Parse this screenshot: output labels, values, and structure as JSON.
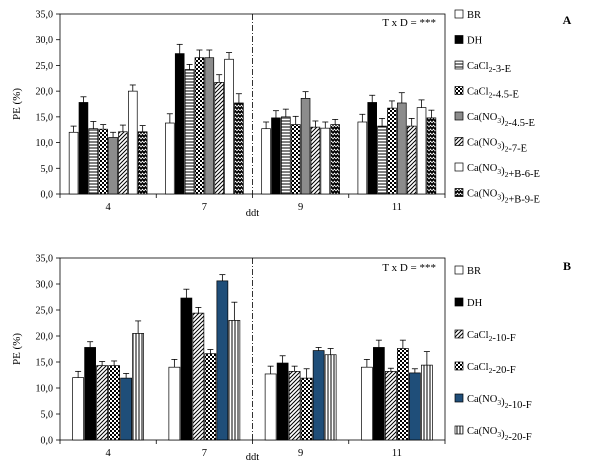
{
  "chart_data": [
    {
      "panel_label": "A",
      "type": "bar",
      "title": "",
      "annotation": "T x D = ***",
      "xlabel": "ddt",
      "ylabel": "PE (%)",
      "categories": [
        "4",
        "7",
        "9",
        "11"
      ],
      "ylim": [
        0,
        35
      ],
      "yticks": [
        "0,0",
        "5,0",
        "10,0",
        "15,0",
        "20,0",
        "25,0",
        "30,0",
        "35,0"
      ],
      "grid": false,
      "legend_position": "right",
      "series": [
        {
          "name": "BR",
          "pattern": "white",
          "values": [
            12.0,
            13.8,
            12.7,
            14.0
          ],
          "errors": [
            1.2,
            1.8,
            1.3,
            1.5
          ]
        },
        {
          "name": "DH",
          "pattern": "black",
          "values": [
            17.8,
            27.3,
            14.8,
            17.8
          ],
          "errors": [
            1.1,
            1.8,
            1.4,
            1.4
          ]
        },
        {
          "name": "CaCl2-3-E",
          "pattern": "hlines",
          "values": [
            12.7,
            24.2,
            15.0,
            13.2
          ],
          "errors": [
            1.4,
            1.0,
            1.5,
            1.5
          ]
        },
        {
          "name": "CaCl2-4.5-E",
          "pattern": "checker",
          "values": [
            12.6,
            26.5,
            13.5,
            16.7
          ],
          "errors": [
            0.9,
            1.5,
            1.6,
            1.4
          ]
        },
        {
          "name": "Ca(NO3)2-4.5-E",
          "pattern": "gray",
          "values": [
            11.0,
            26.5,
            18.6,
            17.7
          ],
          "errors": [
            1.0,
            1.5,
            1.3,
            2.0
          ]
        },
        {
          "name": "Ca(NO3)2-7-E",
          "pattern": "diag",
          "values": [
            12.1,
            21.7,
            13.0,
            13.2
          ],
          "errors": [
            1.3,
            1.5,
            1.2,
            1.5
          ]
        },
        {
          "name": "Ca(NO3)2+B-6-E",
          "pattern": "white",
          "values": [
            20.0,
            26.2,
            12.8,
            16.8
          ],
          "errors": [
            1.2,
            1.3,
            1.2,
            1.5
          ]
        },
        {
          "name": "Ca(NO3)2+B-9-E",
          "pattern": "zigzag",
          "values": [
            12.1,
            17.7,
            13.5,
            14.8
          ],
          "errors": [
            1.2,
            1.8,
            1.0,
            1.5
          ]
        }
      ],
      "legend_labels": [
        {
          "base": "BR",
          "sub": "",
          "rest": ""
        },
        {
          "base": "DH",
          "sub": "",
          "rest": ""
        },
        {
          "base": "CaCl",
          "sub": "2",
          "rest": "-3-E"
        },
        {
          "base": "CaCl",
          "sub": "2",
          "rest": "-4.5-E"
        },
        {
          "base": "Ca(NO",
          "sub": "3",
          "rest": ")",
          "sub2": "2",
          "rest2": "-4.5-E"
        },
        {
          "base": "Ca(NO",
          "sub": "3",
          "rest": ")",
          "sub2": "2",
          "rest2": "-7-E"
        },
        {
          "base": "Ca(NO",
          "sub": "3",
          "rest": ")",
          "sub2": "2",
          "rest2": "+B-6-E"
        },
        {
          "base": "Ca(NO",
          "sub": "3",
          "rest": ")",
          "sub2": "2",
          "rest2": "+B-9-E"
        }
      ]
    },
    {
      "panel_label": "B",
      "type": "bar",
      "title": "",
      "annotation": "T x D = ***",
      "xlabel": "ddt",
      "ylabel": "PE (%)",
      "categories": [
        "4",
        "7",
        "9",
        "11"
      ],
      "ylim": [
        0,
        35
      ],
      "yticks": [
        "0,0",
        "5,0",
        "10,0",
        "15,0",
        "20,0",
        "25,0",
        "30,0",
        "35,0"
      ],
      "grid": false,
      "legend_position": "right",
      "series": [
        {
          "name": "BR",
          "pattern": "white",
          "values": [
            12.0,
            14.0,
            12.7,
            14.0
          ],
          "errors": [
            1.2,
            1.5,
            1.5,
            1.5
          ]
        },
        {
          "name": "DH",
          "pattern": "black",
          "values": [
            17.8,
            27.3,
            14.8,
            17.8
          ],
          "errors": [
            1.1,
            1.7,
            1.4,
            1.4
          ]
        },
        {
          "name": "CaCl2-10-F",
          "pattern": "diag",
          "values": [
            14.3,
            24.4,
            13.2,
            13.2
          ],
          "errors": [
            0.8,
            1.1,
            1.0,
            0.6
          ]
        },
        {
          "name": "CaCl2-20-F",
          "pattern": "checker",
          "values": [
            14.3,
            16.6,
            11.9,
            17.6
          ],
          "errors": [
            0.9,
            0.8,
            1.8,
            1.6
          ]
        },
        {
          "name": "Ca(NO3)2-10-F",
          "pattern": "blue",
          "values": [
            11.9,
            30.6,
            17.2,
            12.9
          ],
          "errors": [
            0.9,
            1.2,
            0.6,
            0.8
          ]
        },
        {
          "name": "Ca(NO3)2-20-F",
          "pattern": "vlines",
          "values": [
            20.5,
            23.0,
            16.4,
            14.4
          ],
          "errors": [
            2.4,
            3.5,
            1.2,
            2.6
          ]
        }
      ],
      "legend_labels": [
        {
          "base": "BR",
          "sub": "",
          "rest": ""
        },
        {
          "base": "DH",
          "sub": "",
          "rest": ""
        },
        {
          "base": "CaCl",
          "sub": "2",
          "rest": "-10-F"
        },
        {
          "base": "CaCl",
          "sub": "2",
          "rest": "-20-F"
        },
        {
          "base": "Ca(NO",
          "sub": "3",
          "rest": ")",
          "sub2": "2",
          "rest2": "-10-F"
        },
        {
          "base": "Ca(NO",
          "sub": "3",
          "rest": ")",
          "sub2": "2",
          "rest2": "-20-F"
        }
      ]
    }
  ],
  "colors": {
    "blue_bar": "#1f4e79",
    "gray_bar": "#8c8c8c",
    "axis": "#000000"
  }
}
